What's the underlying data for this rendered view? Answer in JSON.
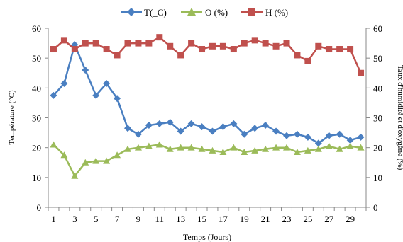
{
  "chart_data": {
    "type": "line",
    "title": "",
    "xlabel": "Temps (Jours)",
    "ylabel_left": "Température (°C)",
    "ylabel_right": "Taux d'humidité et d'oxygène (%)",
    "x": [
      1,
      2,
      3,
      4,
      5,
      6,
      7,
      8,
      9,
      10,
      11,
      12,
      13,
      14,
      15,
      16,
      17,
      18,
      19,
      20,
      21,
      22,
      23,
      24,
      25,
      26,
      27,
      28,
      29,
      30
    ],
    "x_ticks": [
      1,
      3,
      5,
      7,
      9,
      11,
      13,
      15,
      17,
      19,
      21,
      23,
      25,
      27,
      29
    ],
    "ylim": [
      0,
      60
    ],
    "y_ticks": [
      0,
      10,
      20,
      30,
      40,
      50,
      60
    ],
    "grid": false,
    "legend_position": "top",
    "series": [
      {
        "name": "T(_C)",
        "color": "#4a7fc1",
        "marker": "diamond",
        "values": [
          37.5,
          41.5,
          54.5,
          46,
          37.5,
          41.5,
          36.5,
          26.5,
          24.5,
          27.5,
          28,
          28.5,
          25.5,
          28,
          27,
          25.5,
          27,
          28,
          24.5,
          26.5,
          27.5,
          25.5,
          24,
          24.5,
          23.5,
          21.5,
          24,
          24.5,
          22.5,
          23.5
        ]
      },
      {
        "name": "O (%)",
        "color": "#9bbb59",
        "marker": "triangle",
        "values": [
          21,
          17.5,
          10.5,
          15,
          15.5,
          15.5,
          17.5,
          19.5,
          20,
          20.5,
          21,
          19.5,
          20,
          20,
          19.5,
          19,
          18.5,
          20,
          18.5,
          19,
          19.5,
          20,
          20,
          18.5,
          19,
          19.5,
          20.5,
          19.5,
          20.5,
          20
        ]
      },
      {
        "name": "H (%)",
        "color": "#c0504d",
        "marker": "square",
        "values": [
          53,
          56,
          53,
          55,
          55,
          53,
          51,
          55,
          55,
          55,
          57,
          54,
          51,
          55,
          53,
          54,
          54,
          53,
          55,
          56,
          55,
          54,
          55,
          51,
          49,
          54,
          53,
          53,
          53,
          45
        ]
      }
    ]
  }
}
